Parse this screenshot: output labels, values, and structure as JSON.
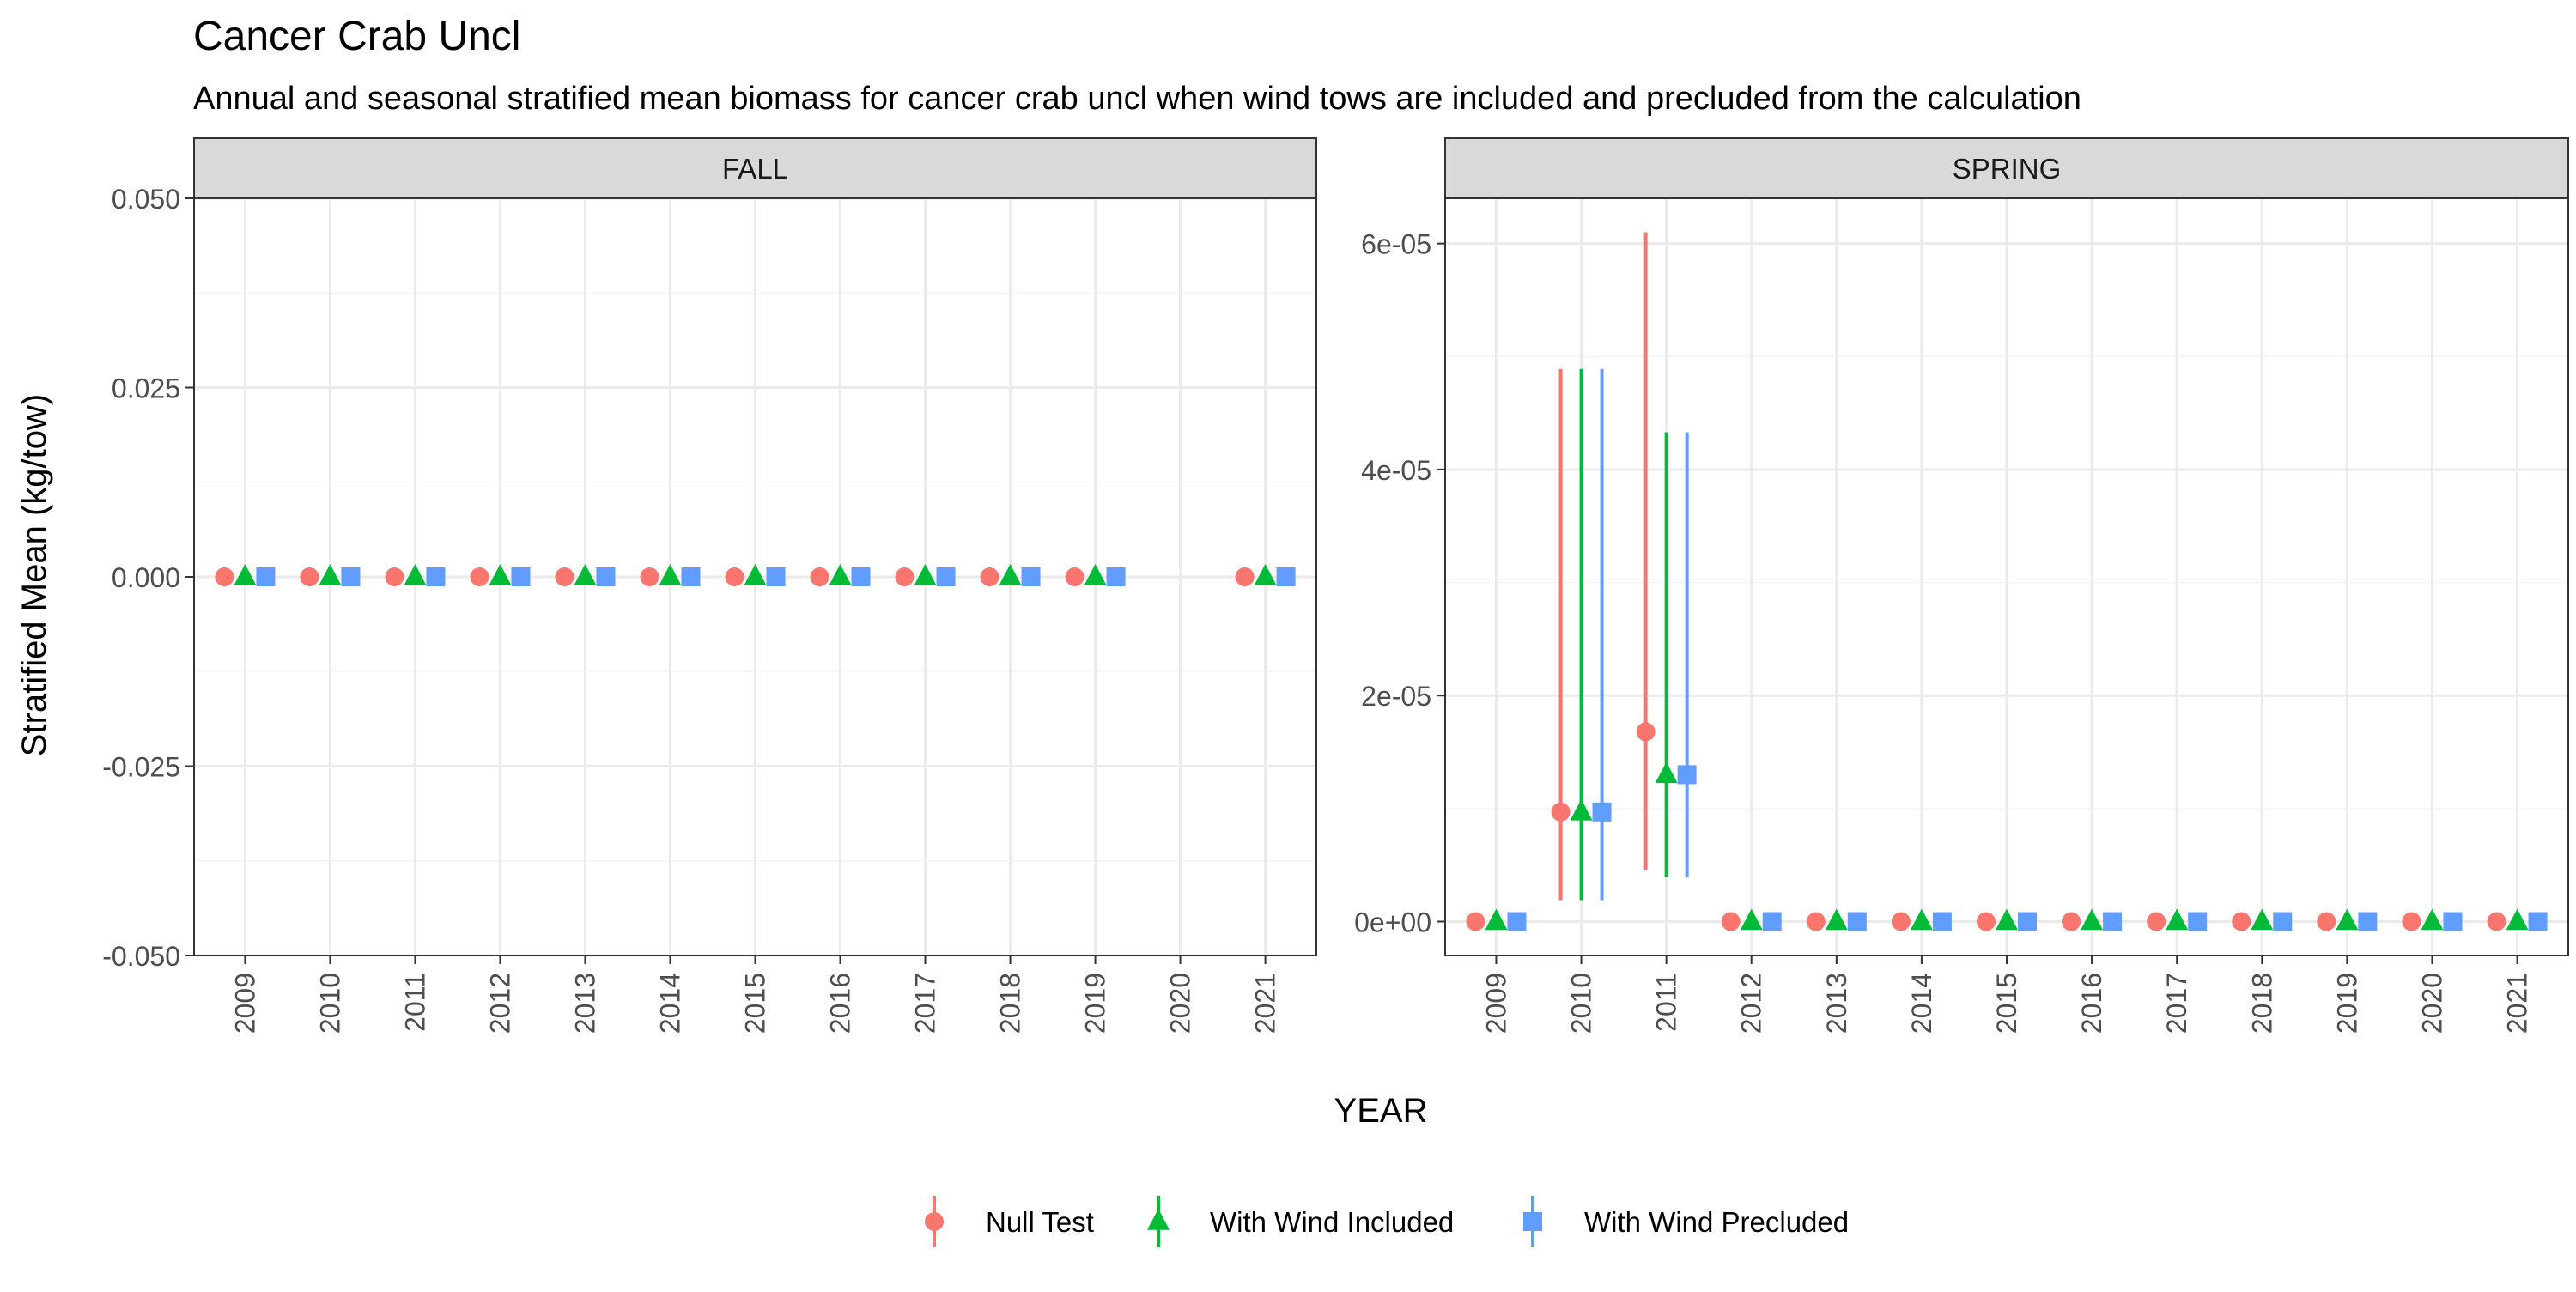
{
  "colors": {
    "null_test": "#F8766D",
    "with_wind_included": "#00BA38",
    "with_wind_precluded": "#619CFF",
    "strip_fill": "#D9D9D9",
    "panel_border": "#333333",
    "grid_major": "#EBEBEB",
    "grid_minor": "#F5F5F5",
    "tick_text": "#4D4D4D"
  },
  "chart_data": {
    "type": "scatter",
    "title": "Cancer Crab Uncl",
    "subtitle": "Annual and seasonal stratified mean biomass for cancer crab uncl when wind tows are included and precluded from the calculation",
    "xlabel": "YEAR",
    "ylabel": "Stratified Mean (kg/tow)",
    "legend_position": "bottom",
    "grid": true,
    "categories": [
      "2009",
      "2010",
      "2011",
      "2012",
      "2013",
      "2014",
      "2015",
      "2016",
      "2017",
      "2018",
      "2019",
      "2020",
      "2021"
    ],
    "legend": [
      {
        "key": "null_test",
        "label": "Null Test",
        "shape": "circle"
      },
      {
        "key": "with_wind_included",
        "label": "With Wind Included",
        "shape": "triangle"
      },
      {
        "key": "with_wind_precluded",
        "label": "With Wind Precluded",
        "shape": "square"
      }
    ],
    "panels": [
      {
        "strip": "FALL",
        "ylim": [
          -0.05,
          0.05
        ],
        "yticks": [
          -0.05,
          -0.025,
          0,
          0.025,
          0.05
        ],
        "ytick_labels": [
          "-0.050",
          "-0.025",
          "0.000",
          "0.025",
          "0.050"
        ],
        "series": [
          {
            "key": "null_test",
            "name": "Null Test",
            "values": [
              0,
              0,
              0,
              0,
              0,
              0,
              0,
              0,
              0,
              0,
              0,
              null,
              0
            ],
            "lower": [
              0,
              0,
              0,
              0,
              0,
              0,
              0,
              0,
              0,
              0,
              0,
              null,
              0
            ],
            "upper": [
              0,
              0,
              0,
              0,
              0,
              0,
              0,
              0,
              0,
              0,
              0,
              null,
              0
            ]
          },
          {
            "key": "with_wind_included",
            "name": "With Wind Included",
            "values": [
              0,
              0,
              0,
              0,
              0,
              0,
              0,
              0,
              0,
              0,
              0,
              null,
              0
            ],
            "lower": [
              0,
              0,
              0,
              0,
              0,
              0,
              0,
              0,
              0,
              0,
              0,
              null,
              0
            ],
            "upper": [
              0,
              0,
              0,
              0,
              0,
              0,
              0,
              0,
              0,
              0,
              0,
              null,
              0
            ]
          },
          {
            "key": "with_wind_precluded",
            "name": "With Wind Precluded",
            "values": [
              0,
              0,
              0,
              0,
              0,
              0,
              0,
              0,
              0,
              0,
              0,
              null,
              0
            ],
            "lower": [
              0,
              0,
              0,
              0,
              0,
              0,
              0,
              0,
              0,
              0,
              0,
              null,
              0
            ],
            "upper": [
              0,
              0,
              0,
              0,
              0,
              0,
              0,
              0,
              0,
              0,
              0,
              null,
              0
            ]
          }
        ]
      },
      {
        "strip": "SPRING",
        "ylim": [
          -3e-06,
          6.4e-05
        ],
        "yticks": [
          0,
          2e-05,
          4e-05,
          6e-05
        ],
        "ytick_labels": [
          "0e+00",
          "2e-05",
          "4e-05",
          "6e-05"
        ],
        "series": [
          {
            "key": "null_test",
            "name": "Null Test",
            "values": [
              0,
              9.7e-06,
              1.68e-05,
              0,
              0,
              0,
              0,
              0,
              0,
              0,
              0,
              0,
              0
            ],
            "lower": [
              0,
              1.9e-06,
              4.6e-06,
              0,
              0,
              0,
              0,
              0,
              0,
              0,
              0,
              0,
              0
            ],
            "upper": [
              0,
              4.89e-05,
              6.1e-05,
              0,
              0,
              0,
              0,
              0,
              0,
              0,
              0,
              0,
              0
            ]
          },
          {
            "key": "with_wind_included",
            "name": "With Wind Included",
            "values": [
              0,
              9.7e-06,
              1.3e-05,
              0,
              0,
              0,
              0,
              0,
              0,
              0,
              0,
              0,
              0
            ],
            "lower": [
              0,
              1.9e-06,
              3.9e-06,
              0,
              0,
              0,
              0,
              0,
              0,
              0,
              0,
              0,
              0
            ],
            "upper": [
              0,
              4.89e-05,
              4.33e-05,
              0,
              0,
              0,
              0,
              0,
              0,
              0,
              0,
              0,
              0
            ]
          },
          {
            "key": "with_wind_precluded",
            "name": "With Wind Precluded",
            "values": [
              0,
              9.7e-06,
              1.3e-05,
              0,
              0,
              0,
              0,
              0,
              0,
              0,
              0,
              0,
              0
            ],
            "lower": [
              0,
              1.9e-06,
              3.9e-06,
              0,
              0,
              0,
              0,
              0,
              0,
              0,
              0,
              0,
              0
            ],
            "upper": [
              0,
              4.89e-05,
              4.33e-05,
              0,
              0,
              0,
              0,
              0,
              0,
              0,
              0,
              0,
              0
            ]
          }
        ]
      }
    ]
  }
}
